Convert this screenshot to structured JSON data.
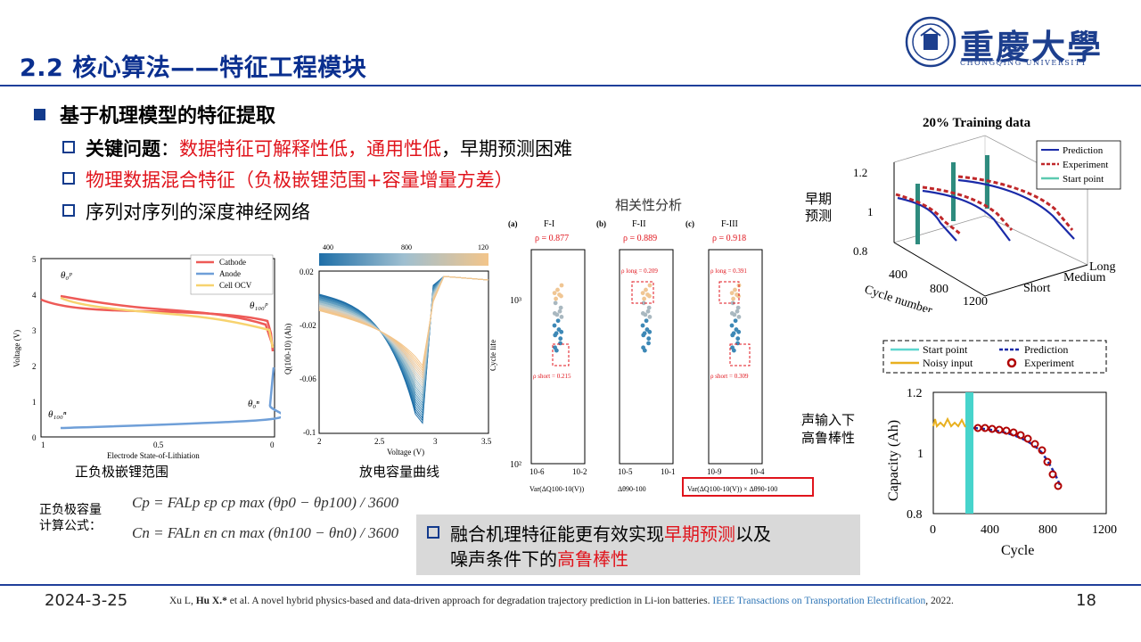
{
  "header": {
    "title": "2.2 核心算法——特征工程模块",
    "logo_text": "重慶大學",
    "logo_sub": "CHONGQING UNIVERSITY"
  },
  "bullets": {
    "main": "基于机理模型的特征提取",
    "item1_label": "关键问题",
    "item1_colon": "：",
    "item1_red": "数据特征可解释性低，通用性低",
    "item1_rest": "，早期预测困难",
    "item2": "物理数据混合特征（负极嵌锂范围+容量增量方差）",
    "item3": "序列对序列的深度神经网络"
  },
  "fig_voltage": {
    "legend": [
      "Cathode",
      "Anode",
      "Cell OCV"
    ],
    "xlabel": "Electrode State-of-Lithiation",
    "ylabel": "Voltage (V)",
    "xticks": [
      "1",
      "0.5",
      "0"
    ],
    "yticks": [
      "0",
      "1",
      "2",
      "3",
      "4",
      "5"
    ],
    "caption": "正负极嵌锂范围",
    "colors": {
      "cathode": "#ee5a57",
      "anode": "#6f9fd8",
      "ocv": "#f7d36f"
    }
  },
  "fig_discharge": {
    "colorbar_ticks": [
      "400",
      "800",
      "120"
    ],
    "ylabel": "Q(100-10) (Ah)",
    "yticks": [
      "0.02",
      "-0.02",
      "-0.06",
      "-0.1"
    ],
    "xticks": [
      "2",
      "2.5",
      "3",
      "3.5"
    ],
    "xlabel": "Voltage (V)",
    "caption": "放电容量曲线"
  },
  "fig_corr": {
    "title": "相关性分析",
    "panels": [
      {
        "tag": "(a)",
        "name": "F-I",
        "rho": "ρ = 0.877",
        "sub_rho": "ρ short = 0.215",
        "xlabel": "Var(ΔQ100-10(V))",
        "xticks": [
          "10-6",
          "10-2"
        ]
      },
      {
        "tag": "(b)",
        "name": "F-II",
        "rho": "ρ = 0.889",
        "sub_rho": "ρ long = 0.209",
        "xlabel": "Δθ90-100",
        "xticks": [
          "10-5",
          "10-1"
        ]
      },
      {
        "tag": "(c)",
        "name": "F-III",
        "rho": "ρ = 0.918",
        "sub_rho": "ρ long = 0.391",
        "sub_rho2": "ρ short = 0.309",
        "xlabel": "Var(ΔQ100-10(V)) × Δθ90-100",
        "xticks": [
          "10-9",
          "10-4"
        ]
      }
    ],
    "ylabel": "Cycle life",
    "yticks": [
      "10³",
      "10²"
    ]
  },
  "fig_3d": {
    "title": "20% Training data",
    "legend": [
      "Prediction",
      "Experiment",
      "Start point"
    ],
    "zticks": [
      "1.2",
      "1",
      "0.8"
    ],
    "xticks": [
      "400",
      "800",
      "1200"
    ],
    "xlabel": "Cycle number",
    "categories": [
      "Short",
      "Medium",
      "Long"
    ]
  },
  "side_labels": {
    "early": "早期\n预测",
    "noise_line1": "噪声输入下",
    "noise_line2": "的高鲁棒性"
  },
  "fig_noise": {
    "legend": [
      "Start point",
      "Prediction",
      "Noisy input",
      "Experiment"
    ],
    "ylabel": "Capacity (Ah)",
    "xlabel": "Cycle",
    "yticks": [
      "1.2",
      "1",
      "0.8"
    ],
    "xticks": [
      "0",
      "400",
      "800",
      "1200"
    ]
  },
  "formula": {
    "label_line1": "正负极容量",
    "label_line2": "计算公式：",
    "cp": "Cp = FALp εp cp max (θp0 − θp100) / 3600",
    "cn": "Cn = FALn εn cn max (θn100 − θn0) / 3600"
  },
  "callout": {
    "part1": "融合机理特征能更有效实现",
    "red1": "早期预测",
    "part2": "以及",
    "part3": "噪声条件下的",
    "red2": "高鲁棒性"
  },
  "footer": {
    "date": "2024-3-25",
    "page": "18",
    "ref_a": "Xu L, ",
    "ref_author": "Hu X.*",
    "ref_b": " et al. A novel hybrid physics-based and data-driven approach for degradation trajectory prediction in Li-ion batteries. ",
    "ref_journal": "IEEE Transactions on Transportation Electrification",
    "ref_year": ", 2022."
  }
}
